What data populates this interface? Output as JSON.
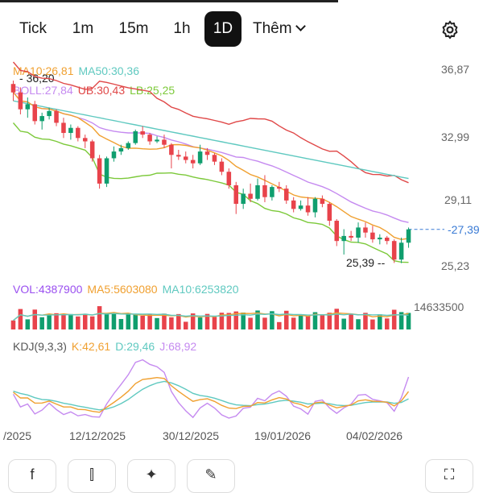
{
  "tabs": [
    {
      "label": "Tick",
      "active": false
    },
    {
      "label": "1m",
      "active": false
    },
    {
      "label": "15m",
      "active": false
    },
    {
      "label": "1h",
      "active": false
    },
    {
      "label": "1D",
      "active": true
    },
    {
      "label": "Thêm",
      "active": false
    }
  ],
  "legend_price": {
    "ma10": "MA10:26,81",
    "ma50": "MA50:30,36",
    "boll": "BOLL:27,84",
    "ub": "UB:30,43",
    "lb": "LB:25,25"
  },
  "legend_vol": {
    "vol": "VOL:4387900",
    "ma5": "MA5:5603080",
    "ma10": "MA10:6253820"
  },
  "legend_kdj": {
    "kdj": "KDJ(9,3,3)",
    "k": "K:42,61",
    "d": "D:29,46",
    "j": "J:68,92"
  },
  "price_axis_labels": [
    "36,87",
    "32,99",
    "29,11",
    "25,23"
  ],
  "last_price_label": "27,39",
  "high_label": "36,20",
  "low_label": "25,39",
  "vol_axis_label": "14633500",
  "x_axis_labels": [
    "/2025",
    "12/12/2025",
    "30/12/2025",
    "19/01/2026",
    "04/02/2026"
  ],
  "toolbar": [
    {
      "name": "indicator-f-button",
      "glyph": "f"
    },
    {
      "name": "candle-type-button",
      "glyph": "⫿"
    },
    {
      "name": "ai-sparkle-button",
      "glyph": "✦"
    },
    {
      "name": "draw-tool-button",
      "glyph": "✎"
    },
    {
      "name": "fullscreen-button",
      "glyph": "⛶"
    }
  ],
  "colors": {
    "up": "#0f9e6e",
    "down": "#e8434b",
    "ma10": "#f0a030",
    "ma50": "#5fc9c0",
    "boll": "#c58af0",
    "ub": "#e04848",
    "lb": "#7cc93a",
    "vol": "#9a4ff0"
  },
  "chart_data": {
    "type": "candlestick",
    "price_range": [
      25.23,
      36.87
    ],
    "volume_max": 14633500,
    "candles": [
      [
        36.0,
        36.2,
        35.0,
        35.5
      ],
      [
        35.5,
        35.8,
        34.2,
        34.5
      ],
      [
        34.5,
        35.2,
        34.0,
        34.8
      ],
      [
        34.8,
        35.0,
        33.6,
        33.8
      ],
      [
        33.8,
        34.3,
        33.3,
        34.1
      ],
      [
        34.1,
        34.6,
        33.9,
        34.4
      ],
      [
        34.4,
        34.5,
        33.5,
        33.7
      ],
      [
        33.7,
        34.0,
        32.8,
        33.1
      ],
      [
        33.1,
        33.6,
        32.7,
        33.4
      ],
      [
        33.4,
        33.5,
        32.6,
        32.8
      ],
      [
        32.8,
        33.0,
        32.2,
        32.6
      ],
      [
        32.6,
        32.7,
        31.4,
        31.6
      ],
      [
        31.6,
        31.8,
        29.8,
        30.1
      ],
      [
        30.1,
        31.7,
        29.9,
        31.6
      ],
      [
        31.6,
        32.3,
        31.4,
        32.0
      ],
      [
        32.0,
        32.4,
        31.8,
        32.2
      ],
      [
        32.2,
        32.6,
        32.1,
        32.5
      ],
      [
        32.5,
        33.3,
        32.4,
        33.2
      ],
      [
        33.2,
        33.5,
        32.8,
        33.0
      ],
      [
        33.0,
        33.1,
        32.4,
        32.6
      ],
      [
        32.6,
        32.9,
        32.5,
        32.7
      ],
      [
        32.7,
        33.0,
        32.2,
        32.4
      ],
      [
        32.4,
        32.5,
        31.0,
        31.8
      ],
      [
        31.8,
        32.1,
        31.5,
        31.7
      ],
      [
        31.7,
        32.0,
        31.3,
        31.5
      ],
      [
        31.5,
        31.8,
        31.0,
        31.3
      ],
      [
        31.3,
        32.4,
        31.2,
        32.0
      ],
      [
        32.0,
        32.2,
        31.5,
        31.8
      ],
      [
        31.8,
        31.9,
        31.2,
        31.4
      ],
      [
        31.4,
        31.6,
        30.6,
        30.8
      ],
      [
        30.8,
        31.0,
        29.8,
        30.0
      ],
      [
        30.0,
        30.2,
        28.3,
        28.9
      ],
      [
        28.9,
        29.8,
        28.6,
        29.5
      ],
      [
        29.5,
        30.1,
        29.0,
        29.2
      ],
      [
        29.2,
        30.4,
        29.1,
        30.0
      ],
      [
        30.0,
        30.6,
        29.0,
        29.3
      ],
      [
        29.3,
        30.0,
        29.1,
        29.9
      ],
      [
        29.9,
        30.2,
        29.6,
        29.8
      ],
      [
        29.8,
        30.0,
        28.9,
        29.1
      ],
      [
        29.1,
        29.3,
        28.4,
        28.6
      ],
      [
        28.6,
        29.1,
        28.5,
        28.8
      ],
      [
        28.8,
        29.3,
        28.2,
        28.4
      ],
      [
        28.4,
        29.3,
        28.1,
        29.2
      ],
      [
        29.2,
        29.4,
        28.7,
        28.9
      ],
      [
        28.9,
        29.0,
        27.6,
        27.9
      ],
      [
        27.9,
        28.0,
        26.4,
        26.7
      ],
      [
        26.7,
        27.4,
        25.9,
        27.0
      ],
      [
        27.0,
        27.3,
        26.7,
        26.9
      ],
      [
        26.9,
        27.8,
        26.6,
        27.5
      ],
      [
        27.5,
        27.8,
        26.9,
        27.2
      ],
      [
        27.2,
        27.6,
        26.6,
        26.8
      ],
      [
        26.8,
        27.1,
        26.5,
        26.9
      ],
      [
        26.9,
        27.0,
        26.5,
        26.7
      ],
      [
        26.7,
        26.8,
        25.4,
        25.6
      ],
      [
        25.6,
        26.9,
        25.39,
        26.6
      ],
      [
        26.6,
        27.5,
        26.3,
        27.39
      ]
    ]
  }
}
